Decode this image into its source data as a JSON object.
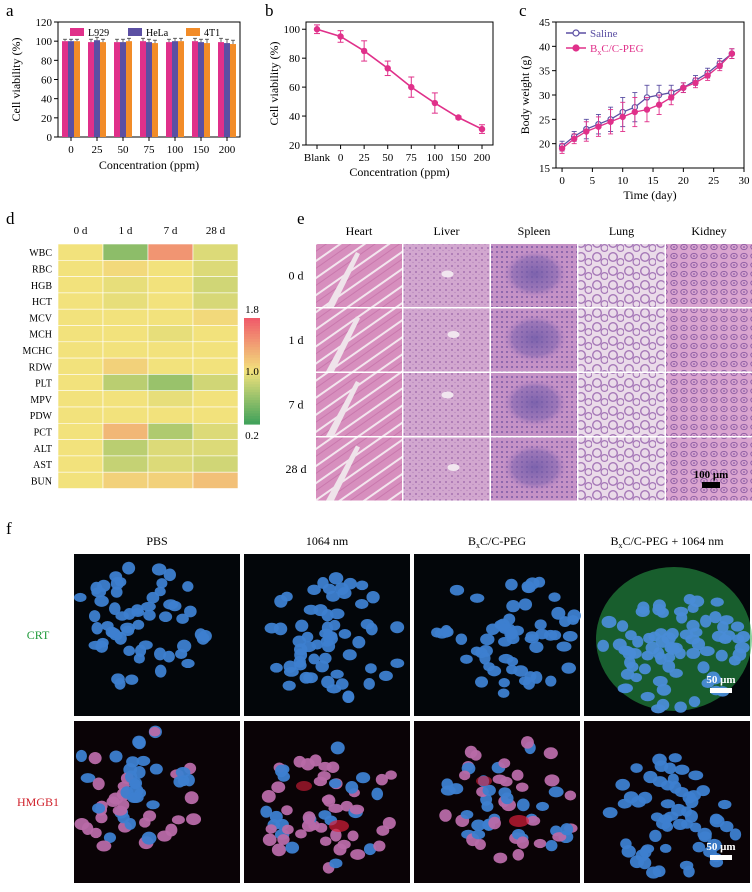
{
  "panels": {
    "a": {
      "letter": "a"
    },
    "b": {
      "letter": "b"
    },
    "c": {
      "letter": "c"
    },
    "d": {
      "letter": "d"
    },
    "e": {
      "letter": "e"
    },
    "f": {
      "letter": "f"
    }
  },
  "chart_data": [
    {
      "id": "a",
      "type": "bar",
      "xlabel": "Concentration (ppm)",
      "ylabel": "Cell viability (%)",
      "ylim": [
        0,
        120
      ],
      "yticks": [
        0,
        20,
        40,
        60,
        80,
        100,
        120
      ],
      "categories": [
        "0",
        "25",
        "50",
        "75",
        "100",
        "150",
        "200"
      ],
      "legend_position": "top",
      "series": [
        {
          "name": "L929",
          "color": "#e0308a",
          "values": [
            100,
            99,
            99,
            100,
            99,
            100,
            99
          ],
          "errors": [
            2,
            3,
            3,
            3,
            3,
            3,
            4
          ]
        },
        {
          "name": "HeLa",
          "color": "#5b4fa3",
          "values": [
            100,
            101,
            99,
            99,
            100,
            99,
            98
          ],
          "errors": [
            2,
            3,
            3,
            3,
            3,
            3,
            4
          ]
        },
        {
          "name": "4T1",
          "color": "#f28c28",
          "values": [
            100,
            99,
            100,
            98,
            100,
            98,
            97
          ],
          "errors": [
            2,
            3,
            3,
            3,
            3,
            4,
            4
          ]
        }
      ]
    },
    {
      "id": "b",
      "type": "line",
      "xlabel": "Concentration (ppm)",
      "ylabel": "Cell viability (%)",
      "ylim": [
        20,
        105
      ],
      "yticks": [
        20,
        40,
        60,
        80,
        100
      ],
      "categories": [
        "Blank",
        "0",
        "25",
        "50",
        "75",
        "100",
        "150",
        "200"
      ],
      "series": [
        {
          "color": "#e0308a",
          "values": [
            100,
            95,
            85,
            73,
            60,
            49,
            39,
            31
          ],
          "errors": [
            3,
            4,
            7,
            5,
            7,
            7,
            1,
            3
          ]
        }
      ]
    },
    {
      "id": "c",
      "type": "line",
      "xlabel": "Time (day)",
      "ylabel": "Body weight (g)",
      "xlim": [
        -1,
        30
      ],
      "ylim": [
        15,
        45
      ],
      "xticks": [
        0,
        5,
        10,
        15,
        20,
        25,
        30
      ],
      "yticks": [
        15,
        20,
        25,
        30,
        35,
        40,
        45
      ],
      "legend_position": "top-left",
      "x": [
        0,
        2,
        4,
        6,
        8,
        10,
        12,
        14,
        16,
        18,
        20,
        22,
        24,
        26,
        28
      ],
      "series": [
        {
          "name": "Saline",
          "color": "#5b4fa3",
          "values": [
            19.5,
            21.5,
            23,
            24,
            25,
            26.5,
            27.5,
            29.5,
            30,
            30.5,
            31.5,
            33,
            34.5,
            36.5,
            38.5
          ],
          "errors": [
            1,
            1,
            2,
            2,
            2.5,
            3,
            3,
            2.5,
            2,
            1.5,
            1,
            1,
            1,
            1,
            1
          ]
        },
        {
          "name": "BₓC/C-PEG",
          "color": "#e0308a",
          "values": [
            19,
            21,
            22.5,
            23.5,
            24.5,
            25.5,
            26.5,
            27,
            28,
            29.5,
            31.5,
            32.5,
            34,
            36,
            38.5
          ],
          "errors": [
            1,
            1,
            2,
            2,
            2.5,
            3,
            3,
            2.5,
            2,
            1.5,
            1,
            1,
            1,
            1,
            1
          ]
        }
      ]
    },
    {
      "id": "d",
      "type": "heatmap",
      "columns": [
        "0 d",
        "1 d",
        "7 d",
        "28 d"
      ],
      "rows": [
        "WBC",
        "RBC",
        "HGB",
        "HCT",
        "MCV",
        "MCH",
        "MCHC",
        "RDW",
        "PLT",
        "MPV",
        "PDW",
        "PCT",
        "ALT",
        "AST",
        "BUN"
      ],
      "values": [
        [
          1.0,
          0.55,
          1.45,
          0.9
        ],
        [
          1.0,
          1.05,
          1.0,
          0.9
        ],
        [
          1.0,
          0.95,
          1.0,
          0.85
        ],
        [
          1.0,
          0.95,
          1.0,
          0.88
        ],
        [
          1.0,
          1.0,
          1.0,
          1.05
        ],
        [
          1.0,
          1.0,
          0.95,
          1.0
        ],
        [
          1.0,
          1.0,
          1.0,
          1.0
        ],
        [
          1.0,
          1.1,
          1.0,
          1.0
        ],
        [
          1.0,
          0.75,
          0.6,
          0.85
        ],
        [
          1.0,
          1.0,
          0.95,
          1.0
        ],
        [
          1.0,
          1.0,
          1.0,
          1.0
        ],
        [
          1.0,
          1.25,
          0.7,
          0.9
        ],
        [
          1.0,
          0.75,
          0.9,
          0.9
        ],
        [
          1.0,
          0.8,
          0.9,
          0.85
        ],
        [
          1.0,
          1.1,
          1.1,
          1.2
        ]
      ],
      "colorbar": {
        "max": "1.8",
        "mid": "1.0",
        "min": "0.2",
        "range": [
          0.2,
          1.8
        ]
      }
    }
  ],
  "histology": {
    "columns": [
      "Heart",
      "Liver",
      "Spleen",
      "Lung",
      "Kidney"
    ],
    "rows": [
      "0 d",
      "1 d",
      "7 d",
      "28 d"
    ],
    "scale_bar": "100 μm"
  },
  "fluorescence": {
    "columns": [
      "PBS",
      "1064 nm",
      "BₓC/C-PEG",
      "BₓC/C-PEG + 1064 nm"
    ],
    "rows": [
      {
        "label": "CRT",
        "color": "#1e9a3a"
      },
      {
        "label": "HMGB1",
        "color": "#d0202a"
      }
    ],
    "scale_bar": "50 μm"
  }
}
